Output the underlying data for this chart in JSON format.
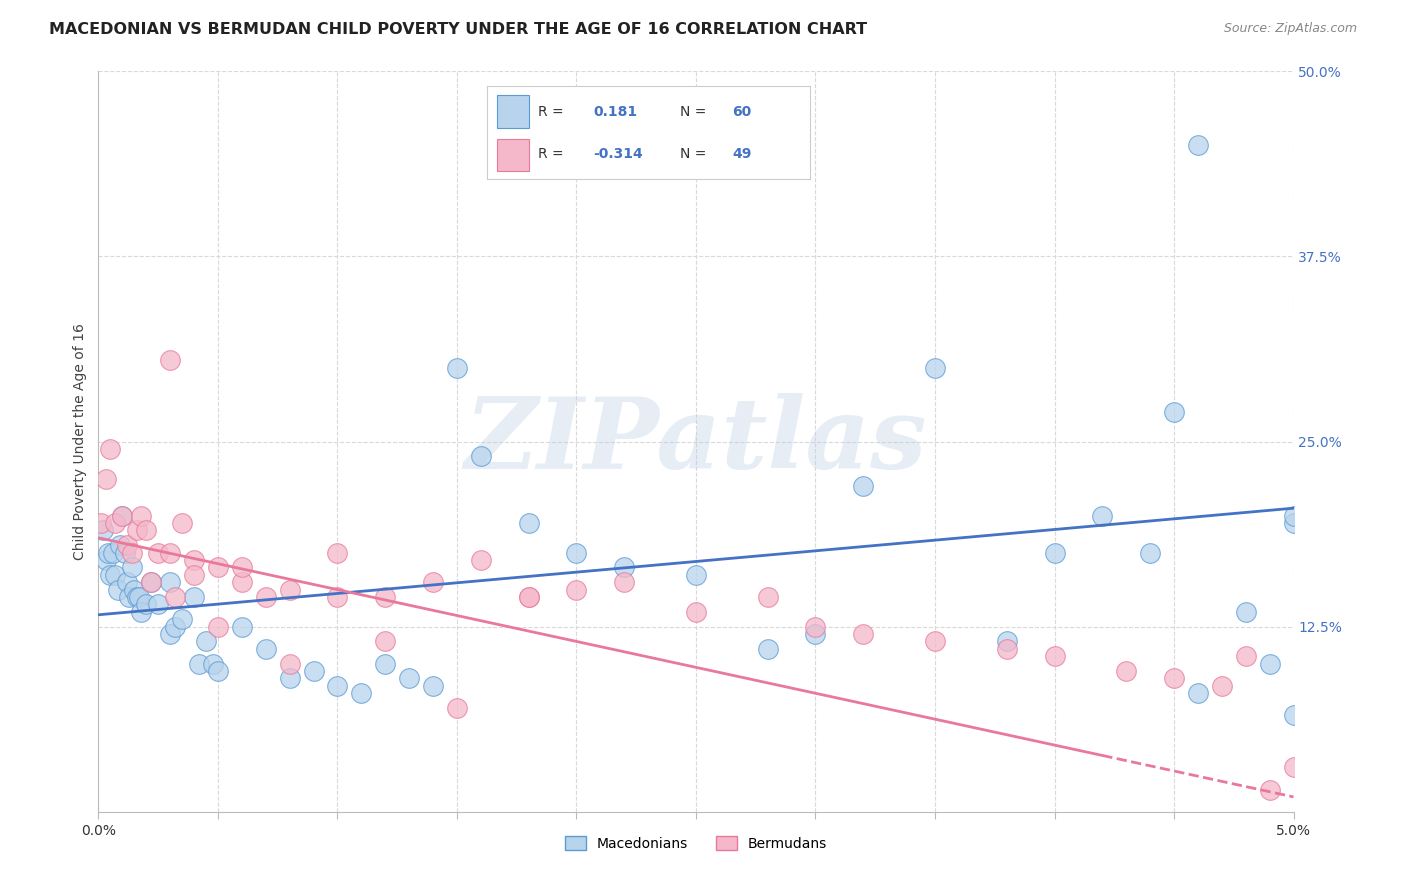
{
  "title": "MACEDONIAN VS BERMUDAN CHILD POVERTY UNDER THE AGE OF 16 CORRELATION CHART",
  "source": "Source: ZipAtlas.com",
  "ylabel": "Child Poverty Under the Age of 16",
  "xlim": [
    0.0,
    0.05
  ],
  "ylim": [
    0.0,
    0.5
  ],
  "yticks_right": [
    0.125,
    0.25,
    0.375,
    0.5
  ],
  "ytick_right_labels": [
    "12.5%",
    "25.0%",
    "37.5%",
    "50.0%"
  ],
  "mac_fill_color": "#b8d4ec",
  "mac_edge_color": "#5b9bd5",
  "ber_fill_color": "#f4b8ca",
  "ber_edge_color": "#e8799a",
  "mac_line_color": "#4472c4",
  "ber_line_color": "#e8799a",
  "label_color": "#4472c4",
  "watermark": "ZIPatlas",
  "background_color": "#ffffff",
  "grid_color": "#d9d9d9",
  "mac_R": 0.181,
  "mac_N": 60,
  "ber_R": -0.314,
  "ber_N": 49,
  "mac_trend_x0": 0.0,
  "mac_trend_y0": 0.133,
  "mac_trend_x1": 0.05,
  "mac_trend_y1": 0.205,
  "ber_trend_x0": 0.0,
  "ber_trend_y0": 0.185,
  "ber_trend_x1": 0.05,
  "ber_trend_y1": 0.01,
  "macedonians_x": [
    0.0002,
    0.0003,
    0.0004,
    0.0005,
    0.0006,
    0.0007,
    0.0008,
    0.0009,
    0.001,
    0.0011,
    0.0012,
    0.0013,
    0.0014,
    0.0015,
    0.0016,
    0.0017,
    0.0018,
    0.002,
    0.0022,
    0.0025,
    0.003,
    0.003,
    0.0032,
    0.0035,
    0.004,
    0.0042,
    0.0045,
    0.0048,
    0.005,
    0.006,
    0.007,
    0.008,
    0.009,
    0.01,
    0.011,
    0.012,
    0.013,
    0.014,
    0.015,
    0.016,
    0.018,
    0.02,
    0.022,
    0.025,
    0.028,
    0.03,
    0.032,
    0.035,
    0.038,
    0.04,
    0.042,
    0.044,
    0.046,
    0.048,
    0.049,
    0.05,
    0.045,
    0.046,
    0.05,
    0.05
  ],
  "macedonians_y": [
    0.19,
    0.17,
    0.175,
    0.16,
    0.175,
    0.16,
    0.15,
    0.18,
    0.2,
    0.175,
    0.155,
    0.145,
    0.165,
    0.15,
    0.145,
    0.145,
    0.135,
    0.14,
    0.155,
    0.14,
    0.155,
    0.12,
    0.125,
    0.13,
    0.145,
    0.1,
    0.115,
    0.1,
    0.095,
    0.125,
    0.11,
    0.09,
    0.095,
    0.085,
    0.08,
    0.1,
    0.09,
    0.085,
    0.3,
    0.24,
    0.195,
    0.175,
    0.165,
    0.16,
    0.11,
    0.12,
    0.22,
    0.3,
    0.115,
    0.175,
    0.2,
    0.175,
    0.45,
    0.135,
    0.1,
    0.195,
    0.27,
    0.08,
    0.2,
    0.065
  ],
  "bermudans_x": [
    0.0001,
    0.0003,
    0.0005,
    0.0007,
    0.001,
    0.0012,
    0.0014,
    0.0016,
    0.0018,
    0.002,
    0.0022,
    0.0025,
    0.003,
    0.0032,
    0.0035,
    0.004,
    0.005,
    0.006,
    0.007,
    0.008,
    0.01,
    0.012,
    0.014,
    0.016,
    0.018,
    0.02,
    0.022,
    0.025,
    0.028,
    0.03,
    0.032,
    0.035,
    0.038,
    0.04,
    0.043,
    0.045,
    0.047,
    0.048,
    0.049,
    0.05,
    0.003,
    0.004,
    0.005,
    0.006,
    0.008,
    0.01,
    0.012,
    0.015,
    0.018
  ],
  "bermudans_y": [
    0.195,
    0.225,
    0.245,
    0.195,
    0.2,
    0.18,
    0.175,
    0.19,
    0.2,
    0.19,
    0.155,
    0.175,
    0.175,
    0.145,
    0.195,
    0.17,
    0.165,
    0.155,
    0.145,
    0.15,
    0.175,
    0.145,
    0.155,
    0.17,
    0.145,
    0.15,
    0.155,
    0.135,
    0.145,
    0.125,
    0.12,
    0.115,
    0.11,
    0.105,
    0.095,
    0.09,
    0.085,
    0.105,
    0.015,
    0.03,
    0.305,
    0.16,
    0.125,
    0.165,
    0.1,
    0.145,
    0.115,
    0.07,
    0.145
  ]
}
